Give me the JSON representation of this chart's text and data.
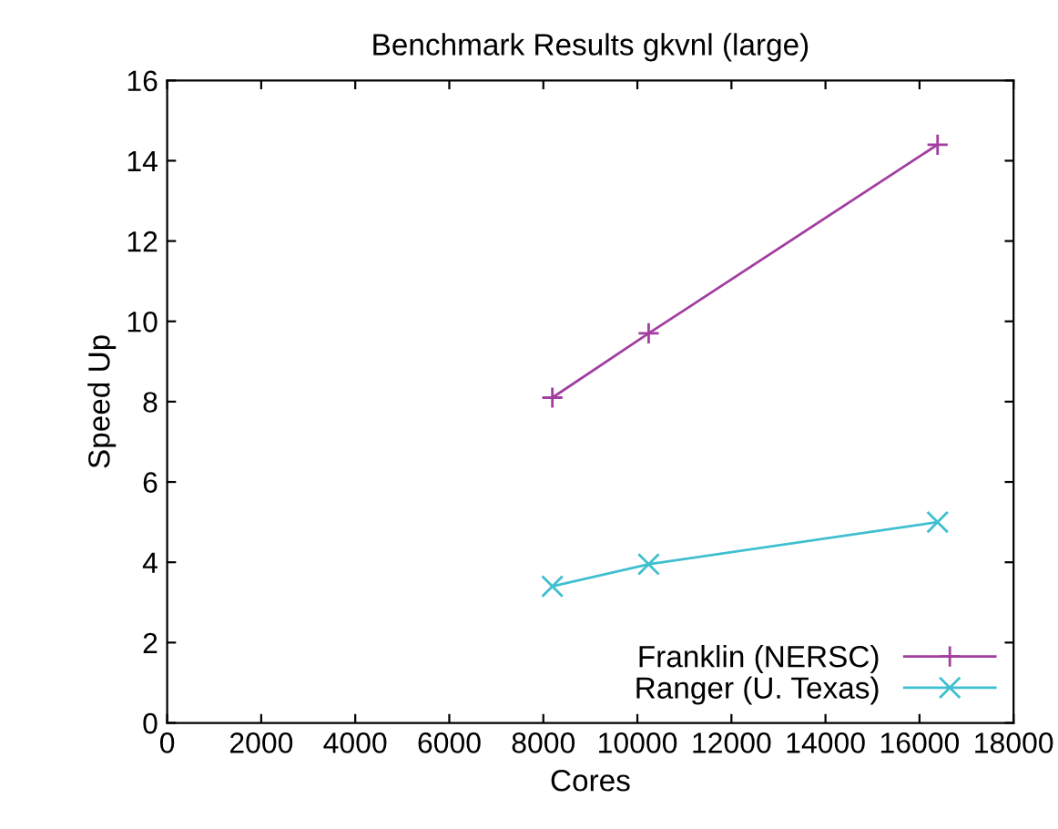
{
  "chart_data": {
    "type": "line",
    "title": "Benchmark Results gkvnl (large)",
    "xlabel": "Cores",
    "ylabel": "Speed Up",
    "x": [
      8192,
      10240,
      16384
    ],
    "series": [
      {
        "name": "Franklin (NERSC)",
        "color": "#a33ea1",
        "marker": "plus",
        "values": [
          8.1,
          9.7,
          14.4
        ]
      },
      {
        "name": "Ranger (U. Texas)",
        "color": "#3fbfcf",
        "marker": "cross",
        "values": [
          3.4,
          3.95,
          5.0
        ]
      }
    ],
    "xlim": [
      0,
      18000
    ],
    "xticks": [
      0,
      2000,
      4000,
      6000,
      8000,
      10000,
      12000,
      14000,
      16000,
      18000
    ],
    "ylim": [
      0,
      16
    ],
    "yticks": [
      0,
      2,
      4,
      6,
      8,
      10,
      12,
      14,
      16
    ],
    "grid": false,
    "legend": "bottom right",
    "line_style": "solid"
  }
}
